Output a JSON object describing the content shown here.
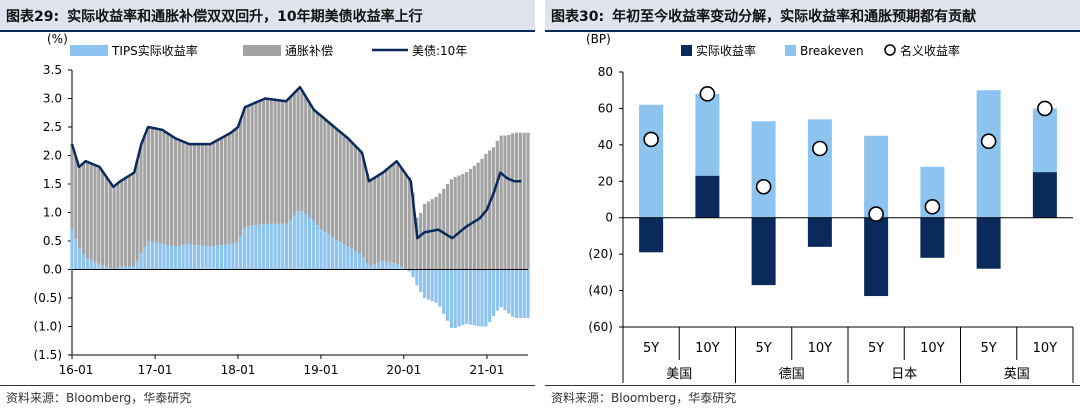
{
  "left": {
    "title_num": "图表29:",
    "title_text": "实际收益率和通胀补偿双双回升，10年期美债收益率上行",
    "source": "资料来源：Bloomberg，华泰研究"
  },
  "right": {
    "title_num": "图表30:",
    "title_text": "年初至今收益率变动分解，实际收益率和通胀预期都有贡献",
    "source": "资料来源：Bloomberg，华泰研究"
  },
  "colors": {
    "navy": "#0b2a5c",
    "lightblue": "#8dc3ef",
    "gray": "#a3a3a3"
  },
  "chart_data": [
    {
      "type": "area",
      "yunit": "(%)",
      "ylim": [
        -1.5,
        3.5
      ],
      "yticks": [
        "3.5",
        "3.0",
        "2.5",
        "2.0",
        "1.5",
        "1.0",
        "0.5",
        "0.0",
        "(0.5)",
        "(1.0)",
        "(1.5)"
      ],
      "xticks": [
        "16-01",
        "17-01",
        "18-01",
        "19-01",
        "20-01",
        "21-01"
      ],
      "legend": [
        "TIPS实际收益率",
        "通胀补偿",
        "美债:10年"
      ],
      "series": [
        {
          "name": "美债:10年",
          "x": [
            "2016-01",
            "2016-02",
            "2016-03",
            "2016-05",
            "2016-07",
            "2016-08",
            "2016-10",
            "2016-11",
            "2016-12",
            "2017-02",
            "2017-04",
            "2017-06",
            "2017-09",
            "2017-12",
            "2018-01",
            "2018-02",
            "2018-05",
            "2018-08",
            "2018-10",
            "2018-12",
            "2019-01",
            "2019-03",
            "2019-05",
            "2019-07",
            "2019-08",
            "2019-10",
            "2019-12",
            "2020-02",
            "2020-03",
            "2020-04",
            "2020-06",
            "2020-08",
            "2020-10",
            "2020-12",
            "2021-01",
            "2021-02",
            "2021-03",
            "2021-04",
            "2021-05",
            "2021-06"
          ],
          "values": [
            2.2,
            1.8,
            1.9,
            1.8,
            1.45,
            1.55,
            1.7,
            2.2,
            2.5,
            2.45,
            2.3,
            2.2,
            2.2,
            2.4,
            2.5,
            2.85,
            3.0,
            2.95,
            3.2,
            2.8,
            2.7,
            2.5,
            2.3,
            2.05,
            1.55,
            1.7,
            1.9,
            1.55,
            0.55,
            0.65,
            0.7,
            0.55,
            0.75,
            0.9,
            1.05,
            1.35,
            1.7,
            1.6,
            1.55,
            1.55
          ]
        },
        {
          "name": "TIPS实际收益率",
          "x": [
            "2016-01",
            "2016-02",
            "2016-03",
            "2016-05",
            "2016-07",
            "2016-08",
            "2016-10",
            "2016-11",
            "2016-12",
            "2017-02",
            "2017-04",
            "2017-06",
            "2017-09",
            "2017-12",
            "2018-01",
            "2018-02",
            "2018-05",
            "2018-08",
            "2018-10",
            "2018-12",
            "2019-01",
            "2019-03",
            "2019-05",
            "2019-07",
            "2019-08",
            "2019-10",
            "2019-12",
            "2020-02",
            "2020-03",
            "2020-04",
            "2020-06",
            "2020-08",
            "2020-10",
            "2020-12",
            "2021-01",
            "2021-02",
            "2021-03",
            "2021-04",
            "2021-05",
            "2021-06"
          ],
          "values": [
            0.7,
            0.4,
            0.2,
            0.1,
            0.0,
            0.05,
            0.05,
            0.3,
            0.5,
            0.45,
            0.4,
            0.45,
            0.4,
            0.45,
            0.5,
            0.75,
            0.8,
            0.8,
            1.05,
            0.85,
            0.7,
            0.55,
            0.4,
            0.25,
            0.05,
            0.15,
            0.1,
            -0.05,
            -0.3,
            -0.5,
            -0.6,
            -1.05,
            -0.95,
            -1.0,
            -1.0,
            -0.8,
            -0.65,
            -0.75,
            -0.85,
            -0.85
          ]
        },
        {
          "name": "通胀补偿",
          "x": [
            "2016-01",
            "2016-02",
            "2016-03",
            "2016-05",
            "2016-07",
            "2016-08",
            "2016-10",
            "2016-11",
            "2016-12",
            "2017-02",
            "2017-04",
            "2017-06",
            "2017-09",
            "2017-12",
            "2018-01",
            "2018-02",
            "2018-05",
            "2018-08",
            "2018-10",
            "2018-12",
            "2019-01",
            "2019-03",
            "2019-05",
            "2019-07",
            "2019-08",
            "2019-10",
            "2019-12",
            "2020-02",
            "2020-03",
            "2020-04",
            "2020-06",
            "2020-08",
            "2020-10",
            "2020-12",
            "2021-01",
            "2021-02",
            "2021-03",
            "2021-04",
            "2021-05",
            "2021-06"
          ],
          "values": [
            1.5,
            1.4,
            1.7,
            1.7,
            1.45,
            1.5,
            1.65,
            1.9,
            2.0,
            2.0,
            1.9,
            1.75,
            1.8,
            1.95,
            2.0,
            2.1,
            2.2,
            2.15,
            2.15,
            1.95,
            2.0,
            1.95,
            1.9,
            1.8,
            1.5,
            1.55,
            1.8,
            1.6,
            0.85,
            1.15,
            1.3,
            1.6,
            1.7,
            1.9,
            2.05,
            2.15,
            2.35,
            2.35,
            2.4,
            2.4
          ]
        }
      ]
    },
    {
      "type": "bar",
      "yunit": "(BP)",
      "ylim": [
        -60,
        80
      ],
      "yticks": [
        "80",
        "60",
        "40",
        "20",
        "0",
        "(20)",
        "(40)",
        "(60)"
      ],
      "categories": [
        "5Y",
        "10Y",
        "5Y",
        "10Y",
        "5Y",
        "10Y",
        "5Y",
        "10Y"
      ],
      "groups": [
        "美国",
        "德国",
        "日本",
        "英国"
      ],
      "legend": [
        "实际收益率",
        "Breakeven",
        "名义收益率"
      ],
      "series": [
        {
          "name": "实际收益率",
          "values": [
            -19,
            23,
            -37,
            -16,
            -43,
            -22,
            -28,
            25
          ]
        },
        {
          "name": "Breakeven",
          "values": [
            62,
            45,
            53,
            54,
            45,
            28,
            70,
            35
          ]
        },
        {
          "name": "名义收益率",
          "values": [
            43,
            68,
            17,
            38,
            2,
            6,
            42,
            60
          ]
        }
      ]
    }
  ]
}
